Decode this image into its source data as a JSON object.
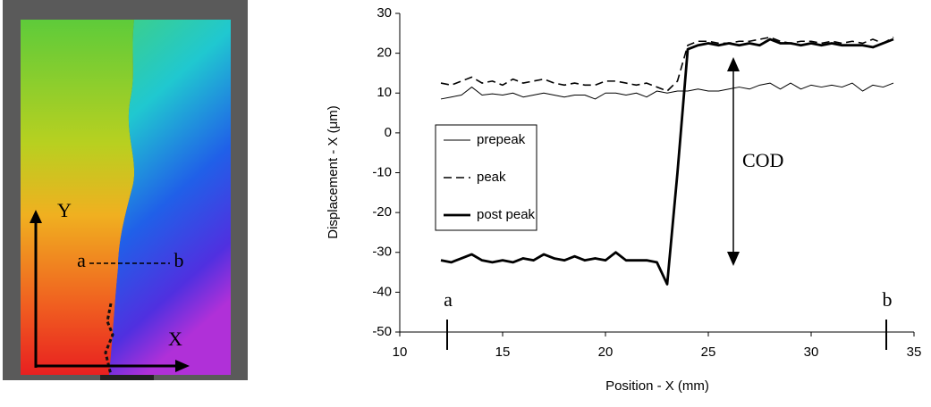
{
  "image_labels": {
    "y_axis": "Y",
    "x_axis": "X",
    "point_a": "a",
    "point_b": "b"
  },
  "chart_data": {
    "type": "line",
    "xlabel": "Position - X (mm)",
    "ylabel": "Displacement - X (μm)",
    "annotations": {
      "cod": "COD",
      "a": "a",
      "b": "b"
    },
    "xlim": [
      10,
      35
    ],
    "xticks": [
      10,
      15,
      20,
      25,
      30,
      35
    ],
    "ylim": [
      -50,
      30
    ],
    "yticks": [
      -50,
      -40,
      -30,
      -20,
      -10,
      0,
      10,
      20,
      30
    ],
    "grid": false,
    "legend": "left",
    "x": [
      12,
      12.5,
      13,
      13.5,
      14,
      14.5,
      15,
      15.5,
      16,
      16.5,
      17,
      17.5,
      18,
      18.5,
      19,
      19.5,
      20,
      20.5,
      21,
      21.5,
      22,
      22.5,
      23,
      23.5,
      24,
      24.5,
      25,
      25.5,
      26,
      26.5,
      27,
      27.5,
      28,
      28.5,
      29,
      29.5,
      30,
      30.5,
      31,
      31.5,
      32,
      32.5,
      33,
      33.5,
      34
    ],
    "series": [
      {
        "name": "prepeak",
        "color": "#000000",
        "line_style": "thin",
        "values": [
          8.5,
          9,
          9.5,
          11.5,
          9.5,
          9.8,
          9.5,
          10,
          9,
          9.5,
          10,
          9.5,
          9,
          9.5,
          9.5,
          8.5,
          10,
          10,
          9.5,
          10,
          9,
          10.5,
          10,
          10.5,
          10.5,
          11,
          10.5,
          10.5,
          11,
          11.5,
          11,
          12,
          12.5,
          11,
          12.5,
          11,
          12,
          11.5,
          12,
          11.5,
          12.5,
          10.5,
          12,
          11.5,
          12.5
        ]
      },
      {
        "name": "peak",
        "color": "#000000",
        "line_style": "dashed",
        "values": [
          12.5,
          12,
          13,
          14,
          12.5,
          13,
          12,
          13.5,
          12.5,
          13,
          13.5,
          12.5,
          12,
          12.5,
          12,
          12,
          13,
          13,
          12.5,
          12,
          12.5,
          11.5,
          10.5,
          13,
          22,
          23,
          23,
          22.5,
          22.5,
          23,
          23,
          23.5,
          24,
          23,
          22.5,
          23,
          23,
          22.5,
          23,
          22.5,
          23,
          22.5,
          23.5,
          22.5,
          24
        ]
      },
      {
        "name": "post peak",
        "color": "#000000",
        "line_style": "thick",
        "values": [
          -32,
          -32.5,
          -31.5,
          -30.5,
          -32,
          -32.5,
          -32,
          -32.5,
          -31.5,
          -32,
          -30.5,
          -31.5,
          -32,
          -31,
          -32,
          -31.5,
          -32,
          -30,
          -32,
          -32,
          -32,
          -32.5,
          -38,
          -10,
          21,
          22,
          22.5,
          22,
          22.5,
          22,
          22.5,
          22,
          23.5,
          22.5,
          22.5,
          22,
          22.5,
          22,
          22.5,
          22,
          22,
          22,
          21.5,
          22.5,
          23.5
        ]
      }
    ]
  }
}
